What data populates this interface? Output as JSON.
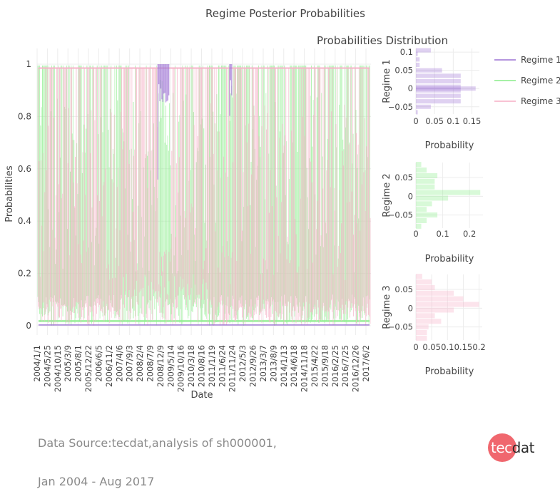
{
  "footer": {
    "line1": "Data Source:tecdat,analysis of sh000001,",
    "line2": "Jan 2004 - Aug 2017"
  },
  "logo": {
    "part1": "tec",
    "part2": "dat"
  },
  "colors": {
    "regime1": "#a27bd6",
    "regime2": "#90ee90",
    "regime3": "#f6b3c8",
    "grid": "#ececec",
    "text": "#444444"
  },
  "chart_data": [
    {
      "type": "line",
      "title": "Regime Posterior Probabilities",
      "xlabel": "Date",
      "ylabel": "Probabilities",
      "ylim": [
        0,
        1
      ],
      "yticks": [
        0,
        0.2,
        0.4,
        0.6,
        0.8,
        1
      ],
      "ytick_labels": [
        "0",
        "0.2",
        "0.4",
        "0.6",
        "0.8",
        "1"
      ],
      "x_tick_labels": [
        "2004/1/1",
        "2004/5/25",
        "2004/10/15",
        "2005/3/9",
        "2005/8/1",
        "2005/12/22",
        "2006/6/5",
        "2006/11/2",
        "2007/4/6",
        "2007/9/3",
        "2008/2/4",
        "2008/7/9",
        "2008/12/9",
        "2009/5/14",
        "2009/10/16",
        "2010/3/18",
        "2010/8/16",
        "2011/1/19",
        "2011/6/24",
        "2011/11/24",
        "2012/5/3",
        "2012/9/26",
        "2013/3/7",
        "2013/8/9",
        "2014/1/13",
        "2014/6/18",
        "2014/11/18",
        "2015/4/22",
        "2015/9/18",
        "2016/2/25",
        "2016/7/25",
        "2016/12/26",
        "2017/6/2"
      ],
      "grid": true,
      "legend_position": "top-right",
      "series": [
        {
          "name": "Regime 1",
          "color": "#a27bd6",
          "high_periods": [
            [
              "2008/12/5",
              "2009/5/30"
            ],
            [
              "2011/11/10",
              "2011/12/10"
            ]
          ]
        },
        {
          "name": "Regime 2",
          "color": "#90ee90"
        },
        {
          "name": "Regime 3",
          "color": "#f6b3c8"
        }
      ]
    },
    {
      "type": "bar",
      "title": "Probabilities Distribution",
      "orientation": "horizontal",
      "xlabel": "Probability",
      "ylabel": "Regime 1",
      "xlim": [
        0,
        0.17
      ],
      "xticks": [
        0,
        0.05,
        0.1,
        0.15
      ],
      "xtick_labels": [
        "0",
        "0.05",
        "0.1",
        "0.15"
      ],
      "ylim": [
        -0.07,
        0.11
      ],
      "yticks": [
        -0.05,
        0,
        0.05,
        0.1
      ],
      "ytick_labels": [
        "−0.05",
        "0",
        "0.05",
        "0.1"
      ],
      "bins": [
        -0.065,
        -0.05,
        -0.035,
        -0.02,
        -0.005,
        0,
        0.005,
        0.02,
        0.035,
        0.05,
        0.065,
        0.08,
        0.095,
        0.105
      ],
      "values": [
        0.005,
        0.04,
        0.12,
        0.12,
        0.12,
        0.16,
        0.12,
        0.12,
        0.12,
        0.07,
        0.01,
        0.01,
        0.005,
        0.04
      ],
      "color": "#a27bd6"
    },
    {
      "type": "bar",
      "orientation": "horizontal",
      "xlabel": "Probability",
      "ylabel": "Regime 2",
      "xlim": [
        0,
        0.25
      ],
      "xticks": [
        0,
        0.1,
        0.2
      ],
      "xtick_labels": [
        "0",
        "0.1",
        "0.2"
      ],
      "ylim": [
        -0.085,
        0.09
      ],
      "yticks": [
        -0.05,
        0,
        0.05
      ],
      "ytick_labels": [
        "−0.05",
        "0",
        "0.05"
      ],
      "bins": [
        -0.08,
        -0.065,
        -0.05,
        -0.035,
        -0.02,
        -0.005,
        0.01,
        0.025,
        0.04,
        0.055,
        0.07,
        0.085
      ],
      "values": [
        0.02,
        0.04,
        0.08,
        0.04,
        0.06,
        0.12,
        0.24,
        0.07,
        0.07,
        0.08,
        0.04,
        0.02
      ],
      "color": "#90ee90"
    },
    {
      "type": "bar",
      "orientation": "horizontal",
      "xlabel": "Probability",
      "ylabel": "Regime 3",
      "xlim": [
        0,
        0.21
      ],
      "xticks": [
        0,
        0.05,
        0.1,
        0.15,
        0.2
      ],
      "xtick_labels": [
        "0",
        "0.05",
        "0.1",
        "0.15",
        "0.2"
      ],
      "ylim": [
        -0.085,
        0.09
      ],
      "yticks": [
        -0.05,
        0,
        0.05
      ],
      "ytick_labels": [
        "−0.05",
        "0",
        "0.05"
      ],
      "bins": [
        -0.08,
        -0.065,
        -0.05,
        -0.035,
        -0.02,
        -0.005,
        0.01,
        0.025,
        0.04,
        0.055,
        0.07,
        0.085
      ],
      "values": [
        0.035,
        0.035,
        0.04,
        0.08,
        0.06,
        0.12,
        0.2,
        0.15,
        0.12,
        0.06,
        0.05,
        0.02
      ],
      "color": "#f6b3c8"
    }
  ]
}
